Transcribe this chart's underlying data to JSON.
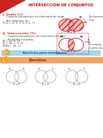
{
  "title": "INTERSECCIÓN DE CONJUNTOS",
  "title_color": "#cc0000",
  "bg_color": "#ffffff",
  "tip_text": "Ejercicios para estudiantes",
  "exercise_text": "Ejercicios",
  "bottom_labels": [
    "A ∪ B",
    "A ∩ B",
    "A ∩ B"
  ],
  "red_color": "#cc2222",
  "pink_fill": "#f5b8b8",
  "tip_bar_color": "#a8d8ea",
  "ex_bar_color": "#f4a460"
}
